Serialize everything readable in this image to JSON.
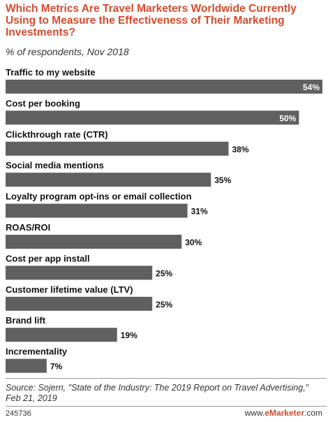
{
  "title": "Which Metrics Are Travel Marketers Worldwide Currently Using to Measure the Effectiveness of Their Marketing Investments?",
  "subtitle": "% of respondents, Nov 2018",
  "chart_data": {
    "type": "bar",
    "orientation": "horizontal",
    "categories": [
      "Traffic to my website",
      "Cost per booking",
      "Clickthrough rate (CTR)",
      "Social media mentions",
      "Loyalty program opt-ins or email collection",
      "ROAS/ROI",
      "Cost per app install",
      "Customer lifetime value (LTV)",
      "Brand lift",
      "Incrementality"
    ],
    "values": [
      54,
      50,
      38,
      35,
      31,
      30,
      25,
      25,
      19,
      7
    ],
    "value_suffix": "%",
    "bar_color": "#606060"
  },
  "source": "Source: Sojern, \"State of the Industry: The 2019 Report on Travel Advertising,\" Feb 21, 2019",
  "footer": {
    "chart_id": "245736",
    "brand_prefix": "www.",
    "brand_name": "eMarketer",
    "brand_suffix": ".com"
  }
}
